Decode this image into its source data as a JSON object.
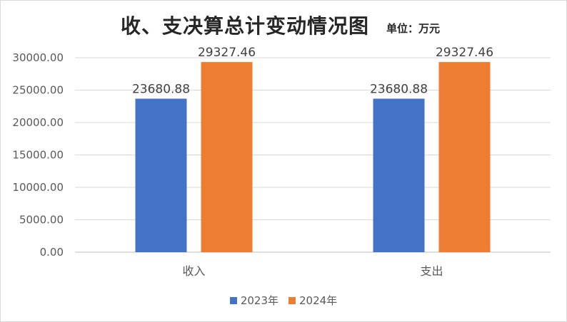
{
  "chart_data": {
    "type": "bar",
    "title": "收、支决算总计变动情况图",
    "unit_label": "单位：万元",
    "categories": [
      "收入",
      "支出"
    ],
    "series": [
      {
        "name": "2023年",
        "color": "#4472C4",
        "values": [
          23680.88,
          23680.88
        ],
        "labels": [
          "23680.88",
          "23680.88"
        ]
      },
      {
        "name": "2024年",
        "color": "#ED7D31",
        "values": [
          29327.46,
          29327.46
        ],
        "labels": [
          "29327.46",
          "29327.46"
        ]
      }
    ],
    "ylim": [
      0,
      30000
    ],
    "yticks": [
      0,
      5000,
      10000,
      15000,
      20000,
      25000,
      30000
    ],
    "ytick_labels": [
      "0.00",
      "5000.00",
      "10000.00",
      "15000.00",
      "20000.00",
      "25000.00",
      "30000.00"
    ],
    "grid": true,
    "legend_position": "bottom"
  }
}
